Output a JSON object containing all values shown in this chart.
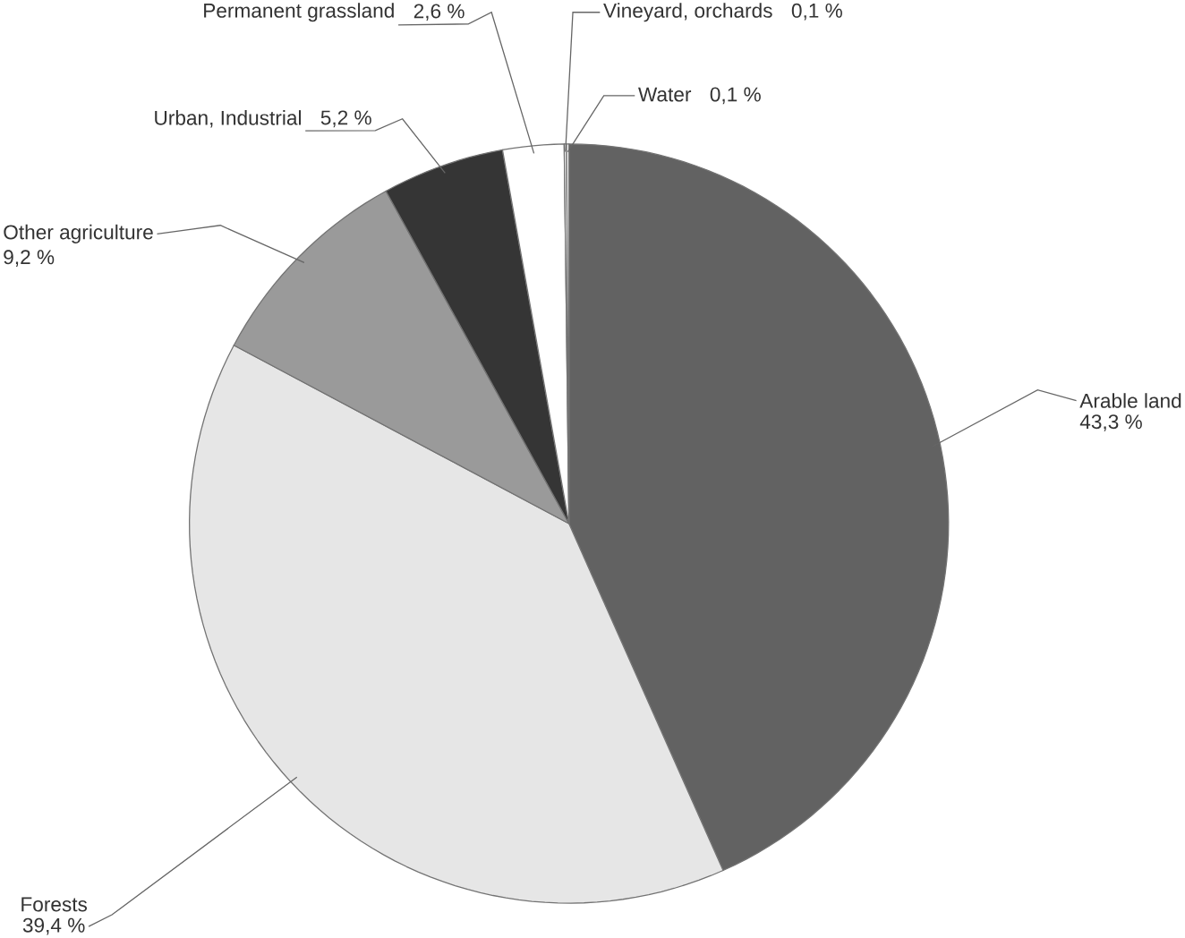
{
  "chart_data": {
    "type": "pie",
    "categories": [
      "Arable land",
      "Forests",
      "Other agriculture",
      "Urban, Industrial",
      "Permanent grassland",
      "Vineyard, orchards",
      "Water"
    ],
    "values": [
      43.3,
      39.4,
      9.2,
      5.2,
      2.6,
      0.1,
      0.1
    ],
    "value_labels": [
      "43,3 %",
      "39,4 %",
      "9,2 %",
      "5,2 %",
      "2,6 %",
      "0,1 %",
      "0,1 %"
    ],
    "colors": [
      "#626262",
      "#e6e6e6",
      "#9a9a9a",
      "#353535",
      "#ffffff",
      "#ffffff",
      "#ffffff"
    ]
  }
}
